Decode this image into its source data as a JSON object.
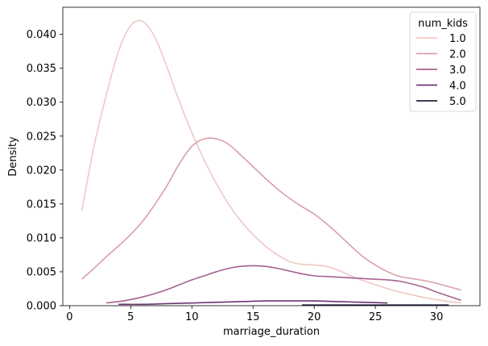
{
  "chart_data": {
    "type": "line",
    "title": "",
    "xlabel": "marriage_duration",
    "ylabel": "Density",
    "xlim": [
      -0.55,
      33.55
    ],
    "ylim": [
      0,
      0.044
    ],
    "xticks": [
      0,
      5,
      10,
      15,
      20,
      25,
      30
    ],
    "yticks": [
      0.0,
      0.005,
      0.01,
      0.015,
      0.02,
      0.025,
      0.03,
      0.035,
      0.04
    ],
    "xtick_labels": [
      "0",
      "5",
      "10",
      "15",
      "20",
      "25",
      "30"
    ],
    "ytick_labels": [
      "0.000",
      "0.005",
      "0.010",
      "0.015",
      "0.020",
      "0.025",
      "0.030",
      "0.035",
      "0.040"
    ],
    "grid": false,
    "legend": {
      "title": "num_kids",
      "placement": "top-right"
    },
    "series": [
      {
        "name": "1.0",
        "color": "#efc8c5",
        "x": [
          1,
          2,
          3,
          4,
          5,
          6,
          7,
          8,
          9,
          10,
          11,
          12,
          13,
          14,
          15,
          16,
          17,
          18,
          19,
          20,
          21,
          22,
          23,
          24,
          25,
          26,
          27,
          28,
          29,
          30,
          31,
          32
        ],
        "y": [
          0.014,
          0.0235,
          0.031,
          0.0375,
          0.0413,
          0.0419,
          0.0395,
          0.035,
          0.03,
          0.0255,
          0.0215,
          0.018,
          0.015,
          0.0125,
          0.0105,
          0.0088,
          0.0075,
          0.0065,
          0.0061,
          0.006,
          0.0058,
          0.0052,
          0.0044,
          0.0037,
          0.0031,
          0.0025,
          0.002,
          0.0016,
          0.0012,
          0.0009,
          0.0006,
          0.0004
        ]
      },
      {
        "name": "2.0",
        "color": "#d79faa",
        "x": [
          1,
          2,
          3,
          4,
          5,
          6,
          7,
          8,
          9,
          10,
          11,
          12,
          13,
          14,
          15,
          16,
          17,
          18,
          19,
          20,
          21,
          22,
          23,
          24,
          25,
          26,
          27,
          28,
          29,
          30,
          31,
          32
        ],
        "y": [
          0.0039,
          0.0055,
          0.0072,
          0.0088,
          0.0105,
          0.0125,
          0.015,
          0.0178,
          0.021,
          0.0235,
          0.0246,
          0.0246,
          0.0238,
          0.0222,
          0.0205,
          0.0188,
          0.0172,
          0.0158,
          0.0146,
          0.0135,
          0.0121,
          0.0105,
          0.0088,
          0.0072,
          0.006,
          0.005,
          0.0043,
          0.004,
          0.0037,
          0.0033,
          0.0028,
          0.0023
        ]
      },
      {
        "name": "3.0",
        "color": "#a66291",
        "x": [
          3,
          4,
          5,
          6,
          7,
          8,
          9,
          10,
          11,
          12,
          13,
          14,
          15,
          16,
          17,
          18,
          19,
          20,
          21,
          22,
          23,
          24,
          25,
          26,
          27,
          28,
          29,
          30,
          31,
          32
        ],
        "y": [
          0.0004,
          0.0006,
          0.0009,
          0.0013,
          0.0018,
          0.0024,
          0.0031,
          0.0038,
          0.0044,
          0.005,
          0.0055,
          0.0058,
          0.0059,
          0.0058,
          0.0055,
          0.0051,
          0.0047,
          0.0044,
          0.0043,
          0.0042,
          0.0041,
          0.004,
          0.0039,
          0.0038,
          0.0036,
          0.0032,
          0.0027,
          0.002,
          0.0014,
          0.0008
        ]
      },
      {
        "name": "4.0",
        "color": "#6b3770",
        "x": [
          4,
          6,
          8,
          10,
          12,
          14,
          16,
          18,
          20,
          22,
          24,
          26
        ],
        "y": [
          0.0002,
          0.0002,
          0.0003,
          0.0004,
          0.0005,
          0.0006,
          0.0007,
          0.0007,
          0.0007,
          0.0006,
          0.0005,
          0.0004
        ]
      },
      {
        "name": "5.0",
        "color": "#2d1e3e",
        "x": [
          19,
          22,
          25,
          28,
          31
        ],
        "y": [
          0.0001,
          0.0001,
          0.0001,
          0.0001,
          0.0001
        ]
      }
    ]
  }
}
